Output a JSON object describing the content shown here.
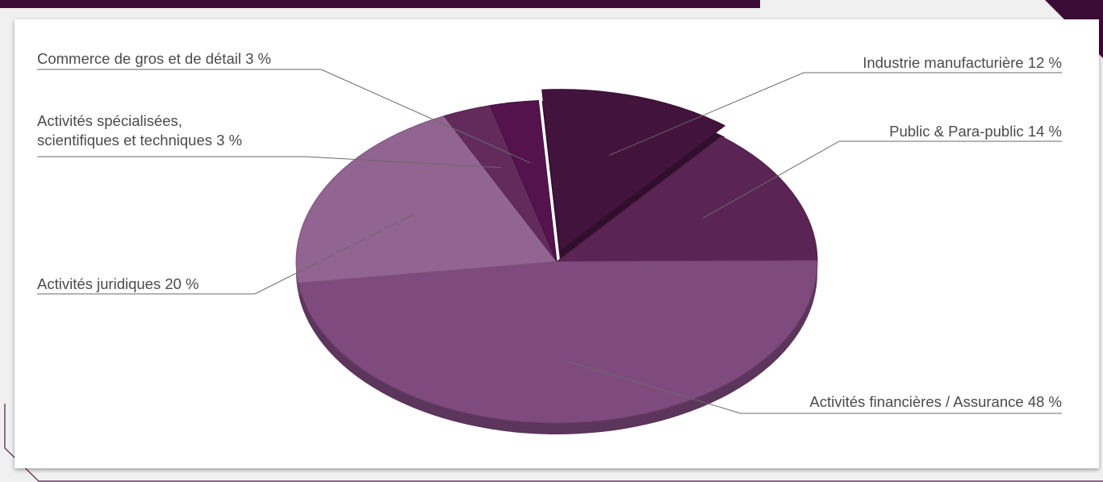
{
  "colors": {
    "accent": "#3a0b34",
    "background": "#f1f0f1"
  },
  "chart_data": {
    "type": "pie",
    "title": "",
    "slices": [
      {
        "label": "Industrie manufacturière 12 %",
        "value": 12,
        "color": "#42133d",
        "explode": 14
      },
      {
        "label": "Public & Para-public 14 %",
        "value": 14,
        "color": "#5a2454",
        "explode": 0
      },
      {
        "label": "Activités financières / Assurance 48 %",
        "value": 48,
        "color": "#7f4a7e",
        "explode": 0
      },
      {
        "label": "Activités juridiques 20 %",
        "value": 20,
        "color": "#926491",
        "explode": 0
      },
      {
        "label": "Activités spécialisées, scientifiques et techniques 3 %",
        "value": 3,
        "color": "#622b5c",
        "explode": 0
      },
      {
        "label": "Commerce de gros et de détail 3 %",
        "value": 3,
        "color": "#54134d",
        "explode": 0
      }
    ],
    "label_lines": [
      [
        "Industrie manufacturière 12 %"
      ],
      [
        "Public & Para-public 14 %"
      ],
      [
        "Activités financières / Assurance 48 %"
      ],
      [
        "Activités juridiques 20 %"
      ],
      [
        "Activités spécialisées,",
        "scientifiques et techniques 3 %"
      ],
      [
        "Commerce de gros et de détail 3 %"
      ]
    ]
  }
}
